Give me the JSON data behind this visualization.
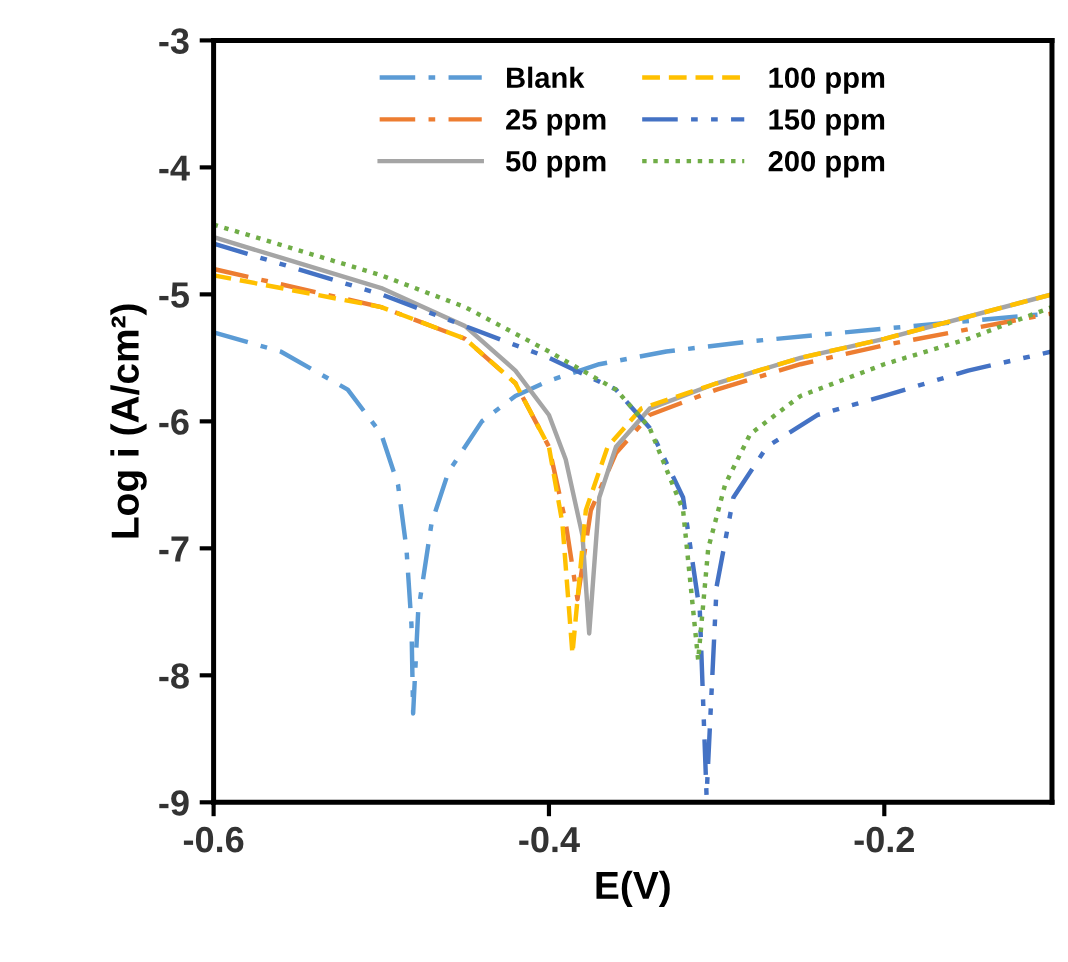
{
  "chart_data": {
    "type": "line",
    "xlabel": "E(V)",
    "ylabel": "Log i (A/cm²)",
    "xlim": [
      -0.6,
      -0.1
    ],
    "xticks": [
      -0.6,
      -0.4,
      -0.2
    ],
    "ylim": [
      -9,
      -3
    ],
    "yticks": [
      -9,
      -8,
      -7,
      -6,
      -5,
      -4,
      -3
    ],
    "grid": false,
    "legend": "top",
    "marker": "none",
    "series": [
      {
        "name": "Blank",
        "color": "#5b9bd5",
        "line_style": "dashdot",
        "x": [
          -0.6,
          -0.56,
          -0.52,
          -0.5,
          -0.49,
          -0.485,
          -0.482,
          -0.481,
          -0.478,
          -0.47,
          -0.46,
          -0.44,
          -0.42,
          -0.4,
          -0.37,
          -0.33,
          -0.28,
          -0.2,
          -0.1
        ],
        "values": [
          -5.3,
          -5.45,
          -5.75,
          -6.1,
          -6.5,
          -7.0,
          -7.6,
          -8.3,
          -7.5,
          -6.8,
          -6.4,
          -6.0,
          -5.8,
          -5.68,
          -5.55,
          -5.45,
          -5.37,
          -5.27,
          -5.15
        ]
      },
      {
        "name": "25 ppm",
        "color": "#ed7d31",
        "line_style": "dashdot",
        "x": [
          -0.6,
          -0.5,
          -0.45,
          -0.42,
          -0.4,
          -0.39,
          -0.383,
          -0.375,
          -0.36,
          -0.34,
          -0.3,
          -0.25,
          -0.2,
          -0.1
        ],
        "values": [
          -4.8,
          -5.1,
          -5.35,
          -5.7,
          -6.2,
          -6.8,
          -7.4,
          -6.7,
          -6.25,
          -5.95,
          -5.75,
          -5.55,
          -5.4,
          -5.15
        ]
      },
      {
        "name": "50 ppm",
        "color": "#a5a5a5",
        "line_style": "solid",
        "x": [
          -0.6,
          -0.5,
          -0.45,
          -0.42,
          -0.4,
          -0.39,
          -0.38,
          -0.376,
          -0.37,
          -0.36,
          -0.34,
          -0.3,
          -0.25,
          -0.2,
          -0.1
        ],
        "values": [
          -4.55,
          -4.95,
          -5.25,
          -5.6,
          -5.95,
          -6.3,
          -6.9,
          -7.67,
          -6.6,
          -6.2,
          -5.9,
          -5.7,
          -5.5,
          -5.35,
          -5.0
        ]
      },
      {
        "name": "100 ppm",
        "color": "#ffc000",
        "line_style": "dashed",
        "x": [
          -0.6,
          -0.5,
          -0.45,
          -0.42,
          -0.4,
          -0.392,
          -0.386,
          -0.378,
          -0.365,
          -0.345,
          -0.3,
          -0.25,
          -0.2,
          -0.1
        ],
        "values": [
          -4.85,
          -5.1,
          -5.35,
          -5.7,
          -6.2,
          -6.8,
          -7.83,
          -6.7,
          -6.2,
          -5.9,
          -5.7,
          -5.5,
          -5.35,
          -5.0
        ]
      },
      {
        "name": "150 ppm",
        "color": "#4472c4",
        "line_style": "dashdotdot",
        "x": [
          -0.6,
          -0.5,
          -0.45,
          -0.4,
          -0.36,
          -0.34,
          -0.32,
          -0.31,
          -0.306,
          -0.3,
          -0.29,
          -0.27,
          -0.24,
          -0.2,
          -0.15,
          -0.1
        ],
        "values": [
          -4.6,
          -5.0,
          -5.25,
          -5.5,
          -5.75,
          -6.05,
          -6.6,
          -7.5,
          -8.95,
          -7.3,
          -6.6,
          -6.2,
          -5.95,
          -5.8,
          -5.6,
          -5.45
        ]
      },
      {
        "name": "200 ppm",
        "color": "#70ad47",
        "line_style": "dotted",
        "x": [
          -0.6,
          -0.5,
          -0.45,
          -0.4,
          -0.36,
          -0.34,
          -0.32,
          -0.311,
          -0.305,
          -0.295,
          -0.28,
          -0.25,
          -0.2,
          -0.15,
          -0.1
        ],
        "values": [
          -4.45,
          -4.85,
          -5.1,
          -5.45,
          -5.75,
          -6.05,
          -6.7,
          -7.88,
          -7.0,
          -6.5,
          -6.1,
          -5.8,
          -5.55,
          -5.35,
          -5.1
        ]
      }
    ]
  }
}
